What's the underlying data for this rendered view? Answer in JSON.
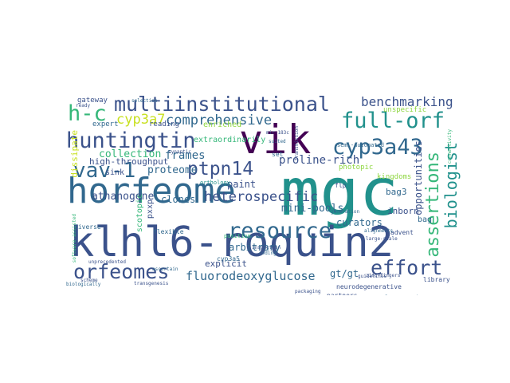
{
  "palette": {
    "dark_purple": "#440154",
    "indigo": "#3b528b",
    "slate": "#31688e",
    "teal": "#21918c",
    "green": "#35b779",
    "lime": "#90d743",
    "yellow": "#c8e020"
  },
  "words": [
    {
      "text": "mgc",
      "color": "#21918c"
    },
    {
      "text": "vik",
      "color": "#440154"
    },
    {
      "text": "horfeome",
      "color": "#31688e"
    },
    {
      "text": "klhl6-roquin2",
      "color": "#3b528b"
    },
    {
      "text": "multiinstitutional",
      "color": "#3b528b"
    },
    {
      "text": "huntingtin",
      "color": "#3b528b"
    },
    {
      "text": "h-c",
      "color": "#35b779"
    },
    {
      "text": "vav-1",
      "color": "#31688e"
    },
    {
      "text": "ptpn14",
      "color": "#3b528b"
    },
    {
      "text": "full-orf",
      "color": "#21918c"
    },
    {
      "text": "cyp3a43",
      "color": "#31688e"
    },
    {
      "text": "effort",
      "color": "#3b528b"
    },
    {
      "text": "resource",
      "color": "#31688e"
    },
    {
      "text": "orfeomes",
      "color": "#3b528b"
    },
    {
      "text": "comprehensive",
      "color": "#31688e"
    },
    {
      "text": "benchmarking",
      "color": "#3b528b"
    },
    {
      "text": "cyp3a7",
      "color": "#c8e020"
    },
    {
      "text": "heterospecific",
      "color": "#3b528b"
    },
    {
      "text": "assertions",
      "color": "#35b779"
    },
    {
      "text": "biologist",
      "color": "#21918c"
    },
    {
      "text": "fluorodeoxyglucose",
      "color": "#31688e"
    },
    {
      "text": "collection",
      "color": "#35b779"
    },
    {
      "text": "proline-rich",
      "color": "#3b528b"
    },
    {
      "text": "proteome",
      "color": "#31688e"
    },
    {
      "text": "frames",
      "color": "#31688e"
    },
    {
      "text": "athanogene",
      "color": "#3b528b"
    },
    {
      "text": "opportunities",
      "color": "#3b528b"
    },
    {
      "text": "mini-pools",
      "color": "#31688e"
    },
    {
      "text": "gt/gt",
      "color": "#31688e"
    },
    {
      "text": "high-throughput",
      "color": "#3b528b"
    },
    {
      "text": "clones",
      "color": "#31688e"
    },
    {
      "text": "paint",
      "color": "#3b528b"
    },
    {
      "text": "explicit",
      "color": "#3b528b"
    },
    {
      "text": "curators",
      "color": "#31688e"
    },
    {
      "text": "bag3",
      "color": "#31688e"
    },
    {
      "text": "arbitrary",
      "color": "#31688e"
    },
    {
      "text": "inborn",
      "color": "#3b528b"
    },
    {
      "text": "kingdoms",
      "color": "#90d743"
    },
    {
      "text": "photopic",
      "color": "#90d743"
    },
    {
      "text": "extraordinarily",
      "color": "#35b779"
    },
    {
      "text": "enriched",
      "color": "#90d743"
    },
    {
      "text": "expert",
      "color": "#31688e"
    },
    {
      "text": "reading",
      "color": "#3b528b"
    },
    {
      "text": "gateway",
      "color": "#3b528b"
    },
    {
      "text": "dissipate",
      "color": "#c8e020"
    },
    {
      "text": "sink",
      "color": "#3b528b"
    },
    {
      "text": "unspecific",
      "color": "#90d743"
    },
    {
      "text": "scotopic",
      "color": "#35b779"
    },
    {
      "text": "pxxp",
      "color": "#3b528b"
    },
    {
      "text": "cyp3a5",
      "color": "#31688e"
    },
    {
      "text": "flexible",
      "color": "#31688e"
    },
    {
      "text": "diverse",
      "color": "#31688e"
    },
    {
      "text": "bag",
      "color": "#31688e"
    },
    {
      "text": "advent",
      "color": "#3b528b"
    },
    {
      "text": "partners",
      "color": "#3b528b"
    },
    {
      "text": "library",
      "color": "#3b528b"
    },
    {
      "text": "neurodegenerative",
      "color": "#3b528b"
    },
    {
      "text": "electroretinograms",
      "color": "#31688e"
    },
    {
      "text": "orthology",
      "color": "#21918c"
    },
    {
      "text": "position",
      "color": "#35b779"
    },
    {
      "text": "semi-automated",
      "color": "#31688e"
    },
    {
      "text": "flp",
      "color": "#3b528b"
    },
    {
      "text": "set",
      "color": "#31688e"
    },
    {
      "text": "mir-183c",
      "color": "#3b528b"
    },
    {
      "text": "software-assisted",
      "color": "#35b779"
    },
    {
      "text": "unprecedented",
      "color": "#3b528b"
    },
    {
      "text": "biologically",
      "color": "#31688e"
    },
    {
      "text": "packaging",
      "color": "#3b528b"
    },
    {
      "text": "connectivity",
      "color": "#35b779"
    },
    {
      "text": "transmission",
      "color": "#3b528b"
    },
    {
      "text": "generation",
      "color": "#31688e"
    },
    {
      "text": "alignments",
      "color": "#31688e"
    },
    {
      "text": "large-scale",
      "color": "#3b528b"
    },
    {
      "text": "guidelines",
      "color": "#3b528b"
    },
    {
      "text": "zinc-fingers",
      "color": "#3b528b"
    },
    {
      "text": "inspection",
      "color": "#3b528b"
    },
    {
      "text": "transgenesis",
      "color": "#3b528b"
    },
    {
      "text": "synaptic",
      "color": "#3b528b"
    },
    {
      "text": "coding",
      "color": "#31688e"
    },
    {
      "text": "suited",
      "color": "#31688e"
    },
    {
      "text": "ready",
      "color": "#3b528b"
    },
    {
      "text": "selection",
      "color": "#31688e"
    },
    {
      "text": "scheme",
      "color": "#3b528b"
    },
    {
      "text": "ascertain",
      "color": "#31688e"
    }
  ]
}
